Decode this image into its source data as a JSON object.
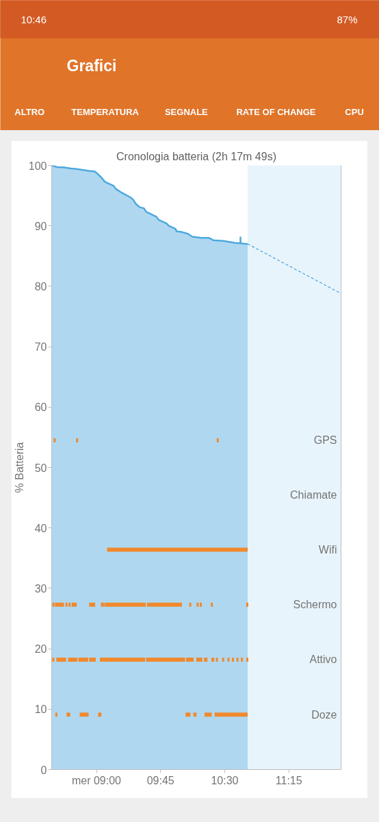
{
  "chart_data": {
    "type": "area",
    "title": "Cronologia batteria (2h 17m 49s)",
    "ylabel": "% Batteria",
    "annotations": [
      "10:46",
      "87%",
      "Grafici",
      "ALTRO",
      "TEMPERATURA",
      "SEGNALE",
      "RATE OF CHANGE",
      "CPU",
      {
        "text": "Chiamate",
        "x": 11.86,
        "y": 45.5
      }
    ],
    "xlim": [
      8.476,
      11.86
    ],
    "xticks": [
      {
        "value": 9,
        "label": "mer 09:00"
      },
      {
        "value": 9.75,
        "label": "09:45"
      },
      {
        "value": 10.5,
        "label": "10:30"
      },
      {
        "value": 11.25,
        "label": "11:15"
      }
    ],
    "ylim": [
      0,
      100
    ],
    "yticks": [
      0,
      10,
      20,
      30,
      40,
      50,
      60,
      70,
      80,
      90,
      100
    ],
    "bands": [
      {
        "axis": "x",
        "from": 10.768,
        "to": 11.86,
        "color": "#e8f4fb"
      }
    ],
    "series": [
      {
        "color": "#4ea8de",
        "x": [
          8.476,
          8.547,
          8.612,
          8.704,
          8.77,
          8.914,
          8.979,
          9.006,
          9.058,
          9.092,
          9.11,
          9.202,
          9.228,
          9.294,
          9.399,
          9.425,
          9.464,
          9.504,
          9.556,
          9.583,
          9.701,
          9.727,
          9.819,
          9.846,
          9.924,
          9.937,
          9.99,
          10.068,
          10.12,
          10.225,
          10.317,
          10.369,
          10.487,
          10.618,
          10.684,
          10.684,
          10.686,
          10.763,
          10.768
        ],
        "values": [
          100.0,
          99.7,
          99.7,
          99.5,
          99.4,
          99.1,
          99.0,
          98.7,
          98.0,
          97.4,
          97.2,
          96.6,
          96.1,
          95.5,
          94.7,
          94.4,
          93.6,
          93.1,
          92.9,
          92.3,
          91.5,
          91.0,
          90.4,
          90.0,
          89.5,
          89.1,
          89.0,
          88.7,
          88.2,
          88.0,
          88.0,
          87.6,
          87.5,
          87.2,
          87.1,
          88.1,
          87.1,
          87.0,
          87.0
        ]
      },
      {
        "type": "line",
        "color": "#4ea8de",
        "line_style": "dashed",
        "x": [
          10.768,
          11.86
        ],
        "values": [
          87.0,
          78.8
        ]
      },
      {
        "type": "line",
        "name": "Doze",
        "color": "#f0892e",
        "x": [
          8.651,
          8.693,
          null,
          8.804,
          8.908,
          null,
          9.019,
          9.058,
          null,
          10.041,
          10.099,
          null,
          10.133,
          10.17,
          null,
          10.264,
          10.348,
          null,
          10.382,
          10.768
        ],
        "values": [
          9.1,
          9.1,
          null,
          9.1,
          9.1,
          null,
          9.1,
          9.1,
          null,
          9.1,
          9.1,
          null,
          9.1,
          9.1,
          null,
          9.1,
          9.1,
          null,
          9.1,
          9.1
        ]
      },
      {
        "type": "scatter",
        "color": "#f0892e",
        "x": [
          8.531
        ],
        "values": [
          9.1
        ]
      },
      {
        "type": "line",
        "name": "Attivo",
        "color": "#f0892e",
        "x": [
          8.531,
          8.646,
          null,
          8.667,
          8.777,
          null,
          8.788,
          8.903,
          null,
          8.914,
          8.992,
          null,
          9.04,
          9.569,
          null,
          9.58,
          10.036,
          null,
          10.047,
          10.136,
          null,
          10.167,
          10.238,
          null,
          10.257,
          10.298,
          null,
          10.343,
          10.377
        ],
        "values": [
          18.2,
          18.2,
          null,
          18.2,
          18.2,
          null,
          18.2,
          18.2,
          null,
          18.2,
          18.2,
          null,
          18.2,
          18.2,
          null,
          18.2,
          18.2,
          null,
          18.2,
          18.2,
          null,
          18.2,
          18.2,
          null,
          18.2,
          18.2,
          null,
          18.2,
          18.2
        ]
      },
      {
        "type": "scatter",
        "color": "#f0892e",
        "x": [
          8.495,
          10.408,
          10.482,
          10.544,
          10.596,
          10.649,
          10.701,
          10.764
        ],
        "values": [
          18.2,
          18.2,
          18.2,
          18.2,
          18.2,
          18.2,
          18.2,
          18.2
        ]
      },
      {
        "type": "line",
        "name": "Schermo",
        "color": "#f0892e",
        "x": [
          8.515,
          8.62,
          null,
          8.709,
          8.769,
          null,
          8.914,
          8.985,
          null,
          9.103,
          9.577,
          null,
          9.59,
          10.0
        ],
        "values": [
          27.3,
          27.3,
          null,
          27.3,
          27.3,
          null,
          27.3,
          27.3,
          null,
          27.3,
          27.3,
          null,
          27.3,
          27.3
        ]
      },
      {
        "type": "scatter",
        "color": "#f0892e",
        "x": [
          8.497,
          8.649,
          8.685,
          9.063,
          9.087,
          10.097,
          10.183,
          10.22,
          10.349,
          10.764
        ],
        "values": [
          27.3,
          27.3,
          27.3,
          27.3,
          27.3,
          27.3,
          27.3,
          27.3,
          27.3,
          27.3
        ]
      },
      {
        "type": "line",
        "name": "Wifi",
        "color": "#f0892e",
        "x": [
          9.124,
          10.768
        ],
        "values": [
          36.4,
          36.4
        ]
      },
      {
        "type": "scatter",
        "name": "GPS",
        "color": "#f0892e",
        "x": [
          8.511,
          8.774,
          10.418
        ],
        "values": [
          54.5,
          54.5,
          54.5
        ]
      }
    ]
  }
}
